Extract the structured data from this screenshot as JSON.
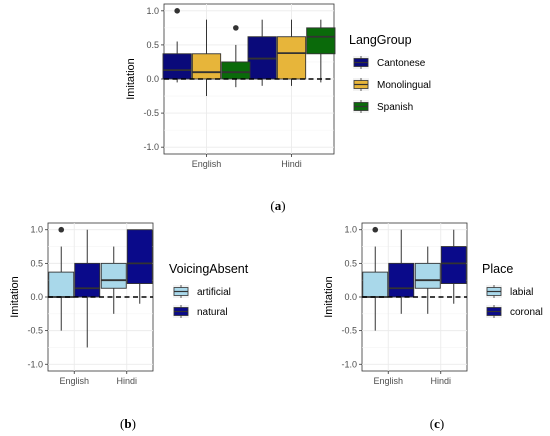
{
  "chart_data": [
    {
      "id": "a",
      "type": "box",
      "caption": "a",
      "ylabel": "Imitation",
      "ylim": [
        -1.1,
        1.1
      ],
      "yticks": [
        -1.0,
        -0.5,
        0.0,
        0.5,
        1.0
      ],
      "ytick_labels": [
        "-1.0",
        "-0.5",
        "0.0",
        "0.5",
        "1.0"
      ],
      "categories": [
        "English",
        "Hindi"
      ],
      "reference_line": 0.0,
      "grid": true,
      "legend": {
        "title": "LangGroup",
        "placement": "right"
      },
      "series": [
        {
          "name": "Cantonese",
          "color": "#0a0a7a",
          "boxes": [
            {
              "lower": -0.05,
              "q1": 0.0,
              "median": 0.13,
              "q3": 0.37,
              "upper": 0.55,
              "outliers": [
                1.0
              ]
            },
            {
              "lower": -0.1,
              "q1": 0.0,
              "median": 0.3,
              "q3": 0.62,
              "upper": 0.87,
              "outliers": []
            }
          ]
        },
        {
          "name": "Monolingual",
          "color": "#e7b53a",
          "boxes": [
            {
              "lower": -0.25,
              "q1": 0.0,
              "median": 0.1,
              "q3": 0.37,
              "upper": 0.87,
              "outliers": []
            },
            {
              "lower": -0.1,
              "q1": 0.0,
              "median": 0.38,
              "q3": 0.62,
              "upper": 0.87,
              "outliers": []
            }
          ]
        },
        {
          "name": "Spanish",
          "color": "#0a6a0a",
          "boxes": [
            {
              "lower": -0.12,
              "q1": 0.0,
              "median": 0.1,
              "q3": 0.25,
              "upper": 0.5,
              "outliers": [
                0.75
              ]
            },
            {
              "lower": -0.05,
              "q1": 0.37,
              "median": 0.62,
              "q3": 0.75,
              "upper": 0.87,
              "outliers": []
            }
          ]
        }
      ]
    },
    {
      "id": "b",
      "type": "box",
      "caption": "b",
      "ylabel": "Imitation",
      "ylim": [
        -1.1,
        1.1
      ],
      "yticks": [
        -1.0,
        -0.5,
        0.0,
        0.5,
        1.0
      ],
      "ytick_labels": [
        "-1.0",
        "-0.5",
        "0.0",
        "0.5",
        "1.0"
      ],
      "categories": [
        "English",
        "Hindi"
      ],
      "reference_line": 0.0,
      "grid": true,
      "legend": {
        "title": "VoicingAbsent",
        "placement": "right"
      },
      "series": [
        {
          "name": "artificial",
          "color": "#a9d8ea",
          "boxes": [
            {
              "lower": -0.5,
              "q1": 0.0,
              "median": 0.0,
              "q3": 0.37,
              "upper": 0.75,
              "outliers": [
                1.0
              ]
            },
            {
              "lower": -0.25,
              "q1": 0.13,
              "median": 0.25,
              "q3": 0.5,
              "upper": 0.75,
              "outliers": []
            }
          ]
        },
        {
          "name": "natural",
          "color": "#0a0a8a",
          "boxes": [
            {
              "lower": -0.75,
              "q1": 0.0,
              "median": 0.13,
              "q3": 0.5,
              "upper": 1.0,
              "outliers": []
            },
            {
              "lower": -0.1,
              "q1": 0.2,
              "median": 0.5,
              "q3": 1.0,
              "upper": 1.0,
              "outliers": []
            }
          ]
        }
      ]
    },
    {
      "id": "c",
      "type": "box",
      "caption": "c",
      "ylabel": "Imitation",
      "ylim": [
        -1.1,
        1.1
      ],
      "yticks": [
        -1.0,
        -0.5,
        0.0,
        0.5,
        1.0
      ],
      "ytick_labels": [
        "-1.0",
        "-0.5",
        "0.0",
        "0.5",
        "1.0"
      ],
      "categories": [
        "English",
        "Hindi"
      ],
      "reference_line": 0.0,
      "grid": true,
      "legend": {
        "title": "Place",
        "placement": "right"
      },
      "series": [
        {
          "name": "labial",
          "color": "#a9d8ea",
          "boxes": [
            {
              "lower": -0.5,
              "q1": 0.0,
              "median": 0.0,
              "q3": 0.37,
              "upper": 0.75,
              "outliers": [
                1.0
              ]
            },
            {
              "lower": -0.25,
              "q1": 0.13,
              "median": 0.25,
              "q3": 0.5,
              "upper": 0.75,
              "outliers": []
            }
          ]
        },
        {
          "name": "coronal",
          "color": "#0a0a8a",
          "boxes": [
            {
              "lower": -0.25,
              "q1": 0.0,
              "median": 0.13,
              "q3": 0.5,
              "upper": 1.0,
              "outliers": []
            },
            {
              "lower": -0.1,
              "q1": 0.2,
              "median": 0.5,
              "q3": 0.75,
              "upper": 1.0,
              "outliers": []
            }
          ]
        }
      ]
    }
  ]
}
